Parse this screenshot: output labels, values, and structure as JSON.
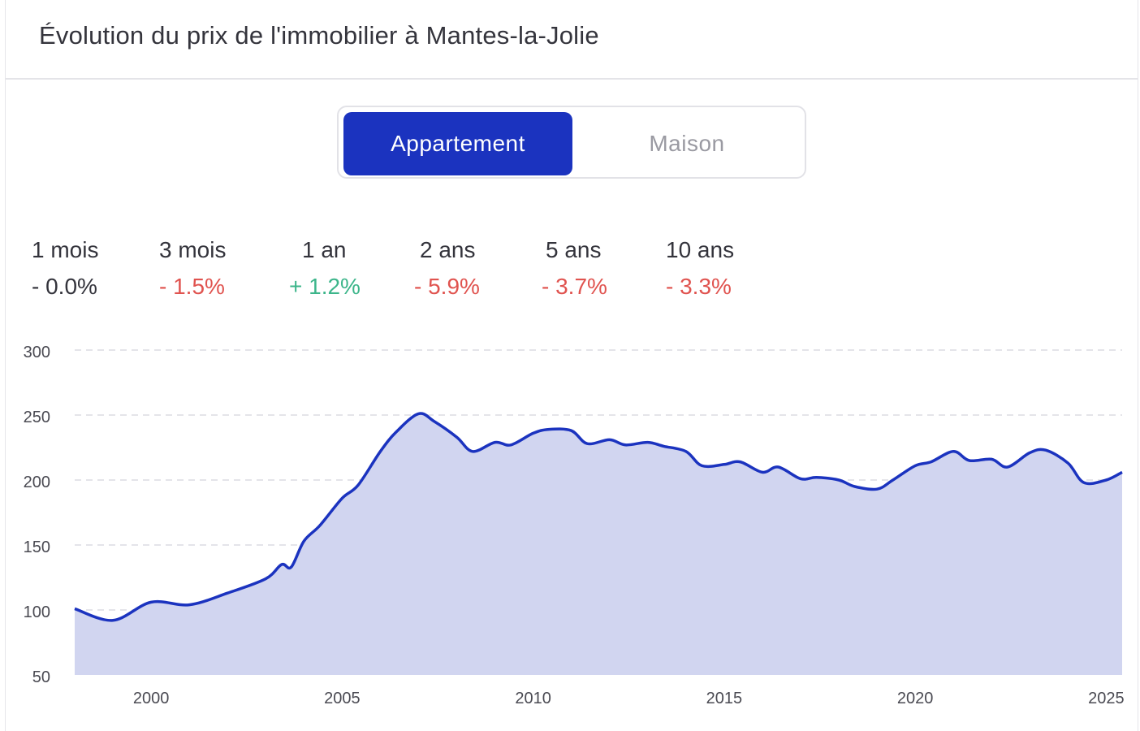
{
  "header": {
    "title": "Évolution du prix de l'immobilier à Mantes-la-Jolie"
  },
  "toggle": {
    "options": [
      "Appartement",
      "Maison"
    ],
    "selected": "Appartement"
  },
  "colors": {
    "accent": "#1b33bf",
    "area_fill": "#d1d5f0",
    "negative": "#e0534f",
    "positive": "#3cb58a",
    "neutral": "#34343c"
  },
  "stats": [
    {
      "period": "1 mois",
      "value": "- 0.0%",
      "tone": "neutral"
    },
    {
      "period": "3 mois",
      "value": "- 1.5%",
      "tone": "negative"
    },
    {
      "period": "1 an",
      "value": "+ 1.2%",
      "tone": "positive"
    },
    {
      "period": "2 ans",
      "value": "- 5.9%",
      "tone": "negative"
    },
    {
      "period": "5 ans",
      "value": "- 3.7%",
      "tone": "negative"
    },
    {
      "period": "10 ans",
      "value": "- 3.3%",
      "tone": "negative"
    }
  ],
  "chart_data": {
    "type": "area",
    "title": "",
    "xlabel": "",
    "ylabel": "",
    "ylim": [
      50,
      300
    ],
    "xlim": [
      "1998-01",
      "2025-06"
    ],
    "y_ticks": [
      300,
      250,
      200,
      150,
      100,
      50
    ],
    "x_ticks": [
      "2000",
      "2005",
      "2010",
      "2015",
      "2020",
      "2025"
    ],
    "grid": "horizontal-dashed",
    "legend": "none",
    "series": [
      {
        "name": "",
        "x": [
          "1998-01",
          "1999-01",
          "2000-01",
          "2001-01",
          "2002-01",
          "2003-01",
          "2003-06",
          "2003-09",
          "2004-01",
          "2004-06",
          "2005-01",
          "2005-06",
          "2006-01",
          "2006-06",
          "2007-01",
          "2007-06",
          "2008-01",
          "2008-06",
          "2009-01",
          "2009-06",
          "2010-01",
          "2010-06",
          "2011-01",
          "2011-06",
          "2012-01",
          "2012-06",
          "2013-01",
          "2013-06",
          "2014-01",
          "2014-06",
          "2015-01",
          "2015-06",
          "2016-01",
          "2016-06",
          "2017-01",
          "2017-06",
          "2018-01",
          "2018-06",
          "2019-01",
          "2019-06",
          "2020-01",
          "2020-06",
          "2021-01",
          "2021-06",
          "2022-01",
          "2022-06",
          "2023-01",
          "2023-06",
          "2024-01",
          "2024-06",
          "2025-01",
          "2025-06"
        ],
        "values": [
          101,
          92,
          106,
          104,
          113,
          124,
          135,
          133,
          153,
          165,
          186,
          196,
          222,
          237,
          251,
          245,
          233,
          222,
          229,
          227,
          236,
          239,
          238,
          228,
          231,
          227,
          229,
          226,
          222,
          211,
          212,
          214,
          206,
          210,
          201,
          202,
          200,
          195,
          193,
          200,
          211,
          214,
          222,
          215,
          216,
          210,
          221,
          223,
          213,
          198,
          200,
          206
        ]
      }
    ]
  }
}
